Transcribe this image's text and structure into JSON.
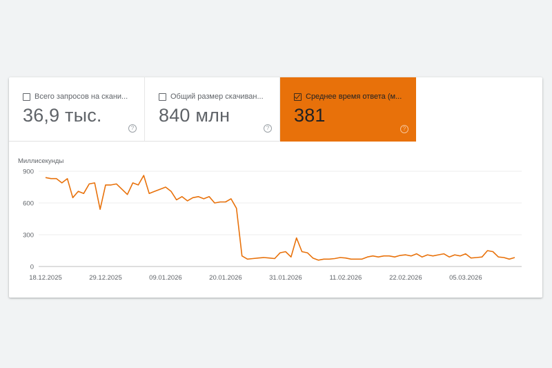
{
  "tiles": [
    {
      "label": "Всего запросов на скани...",
      "value": "36,9 тыс.",
      "checked": false
    },
    {
      "label": "Общий размер скачиван...",
      "value": "840 млн",
      "checked": false
    },
    {
      "label": "Среднее время ответа (м...",
      "value": "381",
      "checked": true
    }
  ],
  "help_glyph": "?",
  "colors": {
    "active_tile": "#e8710a",
    "line": "#e8710a",
    "background": "#f1f3f4"
  },
  "chart_data": {
    "type": "line",
    "ylabel": "Миллисекунды",
    "ylim": [
      0,
      900
    ],
    "yticks": [
      "0",
      "300",
      "600",
      "900"
    ],
    "x_tick_labels": [
      "18.12.2025",
      "29.12.2025",
      "09.01.2026",
      "20.01.2026",
      "31.01.2026",
      "11.02.2026",
      "22.02.2026",
      "05.03.2026"
    ],
    "x_range": [
      "18.12.2025",
      "14.03.2026"
    ],
    "grid": true,
    "series": [
      {
        "x": [
          "18.12.2025",
          "19.12.2025",
          "20.12.2025",
          "21.12.2025",
          "22.12.2025",
          "23.12.2025",
          "24.12.2025",
          "25.12.2025",
          "26.12.2025",
          "27.12.2025",
          "28.12.2025",
          "29.12.2025",
          "30.12.2025",
          "31.12.2025",
          "01.01.2026",
          "02.01.2026",
          "03.01.2026",
          "04.01.2026",
          "05.01.2026",
          "06.01.2026",
          "07.01.2026",
          "08.01.2026",
          "09.01.2026",
          "10.01.2026",
          "11.01.2026",
          "12.01.2026",
          "13.01.2026",
          "14.01.2026",
          "15.01.2026",
          "16.01.2026",
          "17.01.2026",
          "18.01.2026",
          "19.01.2026",
          "20.01.2026",
          "21.01.2026",
          "22.01.2026",
          "23.01.2026",
          "24.01.2026",
          "25.01.2026",
          "26.01.2026",
          "27.01.2026",
          "28.01.2026",
          "29.01.2026",
          "30.01.2026",
          "31.01.2026",
          "01.02.2026",
          "02.02.2026",
          "03.02.2026",
          "04.02.2026",
          "05.02.2026",
          "06.02.2026",
          "07.02.2026",
          "08.02.2026",
          "09.02.2026",
          "10.02.2026",
          "11.02.2026",
          "12.02.2026",
          "13.02.2026",
          "14.02.2026",
          "15.02.2026",
          "16.02.2026",
          "17.02.2026",
          "18.02.2026",
          "19.02.2026",
          "20.02.2026",
          "21.02.2026",
          "22.02.2026",
          "23.02.2026",
          "24.02.2026",
          "25.02.2026",
          "26.02.2026",
          "27.02.2026",
          "28.02.2026",
          "01.03.2026",
          "02.03.2026",
          "03.03.2026",
          "04.03.2026",
          "05.03.2026",
          "06.03.2026",
          "07.03.2026",
          "08.03.2026",
          "09.03.2026",
          "10.03.2026",
          "11.03.2026",
          "12.03.2026",
          "13.03.2026",
          "14.03.2026"
        ],
        "values": [
          840,
          830,
          830,
          790,
          830,
          650,
          710,
          690,
          780,
          790,
          540,
          770,
          770,
          780,
          730,
          680,
          790,
          770,
          860,
          690,
          710,
          730,
          750,
          710,
          630,
          660,
          620,
          650,
          660,
          640,
          660,
          600,
          610,
          610,
          640,
          550,
          100,
          70,
          75,
          80,
          85,
          80,
          75,
          130,
          140,
          90,
          270,
          140,
          130,
          80,
          60,
          70,
          70,
          75,
          85,
          80,
          70,
          70,
          70,
          90,
          100,
          90,
          100,
          100,
          90,
          105,
          110,
          100,
          120,
          90,
          110,
          100,
          110,
          120,
          90,
          110,
          100,
          120,
          80,
          85,
          90,
          150,
          140,
          90,
          85,
          70,
          85
        ]
      }
    ]
  }
}
